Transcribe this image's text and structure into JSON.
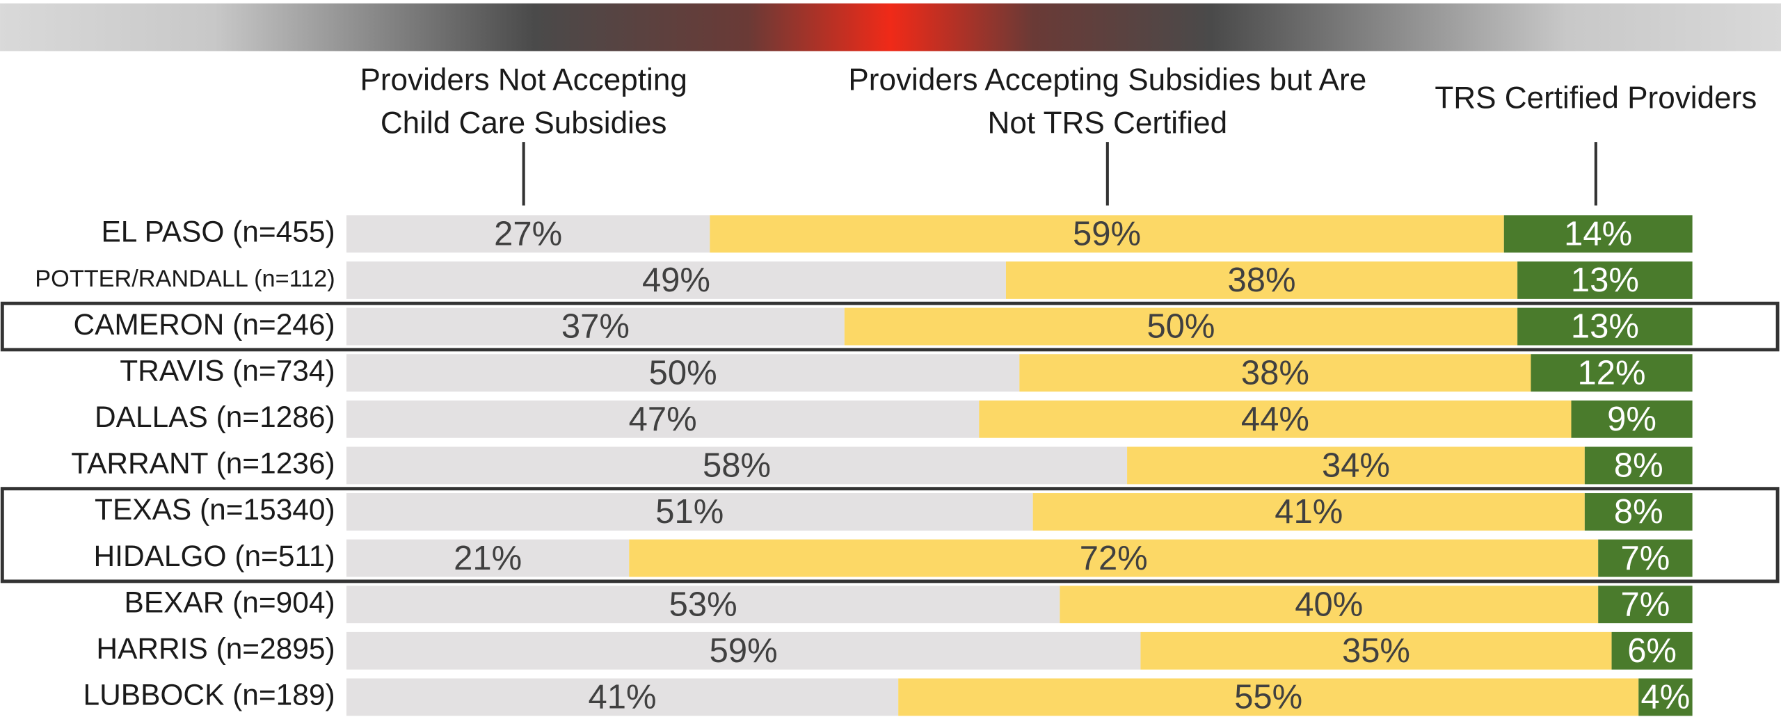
{
  "chart_data": {
    "type": "bar",
    "orientation": "horizontal",
    "stacked": true,
    "categories": [
      "EL PASO (n=455)",
      "POTTER/RANDALL (n=112)",
      "CAMERON (n=246)",
      "TRAVIS (n=734)",
      "DALLAS (n=1286)",
      "TARRANT (n=1236)",
      "TEXAS (n=15340)",
      "HIDALGO (n=511)",
      "BEXAR (n=904)",
      "HARRIS (n=2895)",
      "LUBBOCK (n=189)"
    ],
    "xlim": [
      0,
      100
    ],
    "series": [
      {
        "name": "Providers Not Accepting Child Care Subsidies",
        "color": "#e3e1e2",
        "values": [
          27,
          49,
          37,
          50,
          47,
          58,
          51,
          21,
          53,
          59,
          41
        ],
        "value_labels": [
          "27%",
          "49%",
          "37%",
          "50%",
          "47%",
          "58%",
          "51%",
          "21%",
          "53%",
          "59%",
          "41%"
        ]
      },
      {
        "name": "Providers Accepting Subsidies but Are Not TRS Certified",
        "color": "#fcd866",
        "values": [
          59,
          38,
          50,
          38,
          44,
          34,
          41,
          72,
          40,
          35,
          55
        ],
        "value_labels": [
          "59%",
          "38%",
          "50%",
          "38%",
          "44%",
          "34%",
          "41%",
          "72%",
          "40%",
          "35%",
          "55%"
        ]
      },
      {
        "name": "TRS Certified Providers",
        "color": "#4a7b2c",
        "values": [
          14,
          13,
          13,
          12,
          9,
          8,
          8,
          7,
          7,
          6,
          4
        ],
        "value_labels": [
          "14%",
          "13%",
          "13%",
          "12%",
          "9%",
          "8%",
          "8%",
          "7%",
          "7%",
          "6%",
          "4%"
        ]
      }
    ]
  }
}
